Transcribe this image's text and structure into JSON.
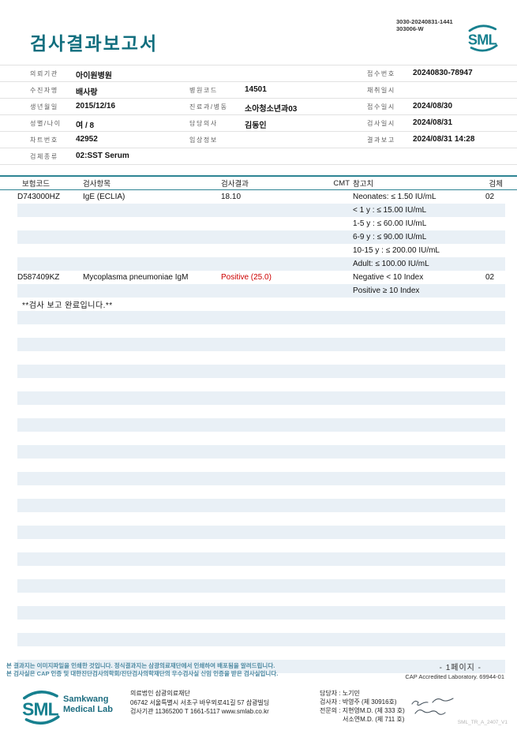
{
  "header": {
    "title": "검사결과보고서",
    "doc_codes": "3030-20240831-1441\n303006-W",
    "logo_text": "SML"
  },
  "patient_info": {
    "rows": [
      {
        "cells": [
          {
            "col": 0,
            "label": "의뢰기관",
            "value": "아이원병원"
          },
          {
            "col": 2,
            "label": "접수번호",
            "value": "20240830-78947"
          }
        ]
      },
      {
        "cells": [
          {
            "col": 0,
            "label": "수진자명",
            "value": "배사랑"
          },
          {
            "col": 1,
            "label": "병원코드",
            "value": "14501"
          },
          {
            "col": 2,
            "label": "채취일시",
            "value": ""
          }
        ]
      },
      {
        "cells": [
          {
            "col": 0,
            "label": "생년월일",
            "value": "2015/12/16"
          },
          {
            "col": 1,
            "label": "진료과/병동",
            "value": "소아청소년과03"
          },
          {
            "col": 2,
            "label": "접수일시",
            "value": "2024/08/30"
          }
        ]
      },
      {
        "cells": [
          {
            "col": 0,
            "label": "성별/나이",
            "value": "여 / 8"
          },
          {
            "col": 1,
            "label": "담당의사",
            "value": "김동인"
          },
          {
            "col": 2,
            "label": "검사일시",
            "value": "2024/08/31"
          }
        ]
      },
      {
        "cells": [
          {
            "col": 0,
            "label": "차트번호",
            "value": "42952"
          },
          {
            "col": 1,
            "label": "임상정보",
            "value": ""
          },
          {
            "col": 2,
            "label": "결과보고",
            "value": "2024/08/31 14:28"
          }
        ]
      },
      {
        "cells": [
          {
            "col": 0,
            "label": "검체종류",
            "value": "02:SST Serum"
          }
        ]
      }
    ]
  },
  "results": {
    "headers": {
      "code": "보험코드",
      "item": "검사항목",
      "result": "검사결과",
      "cmt": "CMT",
      "ref": "참고치",
      "spec": "검체"
    },
    "rows": [
      {
        "code": "D743000HZ",
        "item": "IgE (ECLIA)",
        "result": "18.10",
        "cmt": "",
        "ref": "Neonates: ≤ 1.50 IU/mL",
        "spec": "02"
      },
      {
        "code": "",
        "item": "",
        "result": "",
        "cmt": "",
        "ref": "< 1 y : ≤ 15.00 IU/mL",
        "spec": ""
      },
      {
        "code": "",
        "item": "",
        "result": "",
        "cmt": "",
        "ref": "1-5 y : ≤ 60.00 IU/mL",
        "spec": ""
      },
      {
        "code": "",
        "item": "",
        "result": "",
        "cmt": "",
        "ref": "6-9 y : ≤ 90.00 IU/mL",
        "spec": ""
      },
      {
        "code": "",
        "item": "",
        "result": "",
        "cmt": "",
        "ref": "10-15 y : ≤ 200.00 IU/mL",
        "spec": ""
      },
      {
        "code": "",
        "item": "",
        "result": "",
        "cmt": "",
        "ref": "Adult: ≤ 100.00 IU/mL",
        "spec": ""
      },
      {
        "code": "D587409KZ",
        "item": "Mycoplasma pneumoniae IgM",
        "result": "Positive (25.0)",
        "result_red": true,
        "cmt": "",
        "ref": "Negative < 10 Index",
        "spec": "02"
      },
      {
        "code": "",
        "item": "",
        "result": "",
        "cmt": "",
        "ref": "Positive ≥ 10 Index",
        "spec": ""
      },
      {
        "note": "**검사 보고 완료입니다.**"
      }
    ],
    "empty_row_count": 26
  },
  "footer": {
    "page_indicator": "- 1페이지 -",
    "notice_lines": [
      "본 결과지는 이미지파일을 인쇄한 것입니다. 정식결과지는 삼광의료재단에서 인쇄하여 배포됨을 알려드립니다.",
      "본 검사실은 CAP 인증 및 대한진단검사의학회/진단검사의학재단의 우수검사실 신임 인증을 받은 검사실입니다."
    ],
    "cap_text": "CAP Accredited Laboratory. 69944-01",
    "logo_text": "SML",
    "lab_name_line1": "Samkwang",
    "lab_name_line2": "Medical Lab",
    "address_lines": [
      "의료법인 삼광의료재단",
      "06742 서울특별시 서초구 바우뫼로41길 57 삼광빌딩",
      "검사기관 11365200 T 1661-5117 www.smlab.co.kr"
    ],
    "staff_lines": [
      "담당자 : 노기민",
      "검사자 : 박영주 (제 30916호)",
      "전문의 : 지현영M.D. (제 333 호)",
      "서소연M.D. (제 711 호)"
    ],
    "form_code": "SML_TR_A_2407_V1"
  }
}
